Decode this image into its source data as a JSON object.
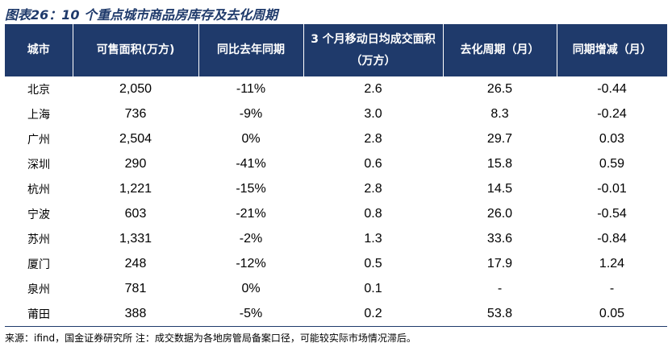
{
  "title": "图表26：10 个重点城市商品房库存及去化周期",
  "headers": [
    "城市",
    "可售面积(万方)",
    "同比去年同期",
    "3 个月移动日均成交面积（万方）",
    "去化周期（月）",
    "同期增减（月）"
  ],
  "rows": [
    [
      "北京",
      "2,050",
      "-11%",
      "2.6",
      "26.5",
      "-0.44"
    ],
    [
      "上海",
      "736",
      "-9%",
      "3.0",
      "8.3",
      "-0.24"
    ],
    [
      "广州",
      "2,504",
      "0%",
      "2.8",
      "29.7",
      "0.03"
    ],
    [
      "深圳",
      "290",
      "-41%",
      "0.6",
      "15.8",
      "0.59"
    ],
    [
      "杭州",
      "1,221",
      "-15%",
      "2.8",
      "14.5",
      "-0.01"
    ],
    [
      "宁波",
      "603",
      "-21%",
      "0.8",
      "26.0",
      "-0.54"
    ],
    [
      "苏州",
      "1,331",
      "-2%",
      "1.3",
      "33.6",
      "-0.84"
    ],
    [
      "厦门",
      "248",
      "-12%",
      "0.5",
      "17.9",
      "1.24"
    ],
    [
      "泉州",
      "781",
      "0%",
      "0.1",
      "-",
      "-"
    ],
    [
      "莆田",
      "388",
      "-5%",
      "0.2",
      "53.8",
      "0.05"
    ]
  ],
  "source": "来源：ifind，国金证券研究所 注：成交数据为各地房管局备案口径，可能较实际市场情况滞后。",
  "colors": {
    "header_bg": "#1f3a6b",
    "header_text": "#ffffff",
    "title": "#1f3a6b"
  }
}
